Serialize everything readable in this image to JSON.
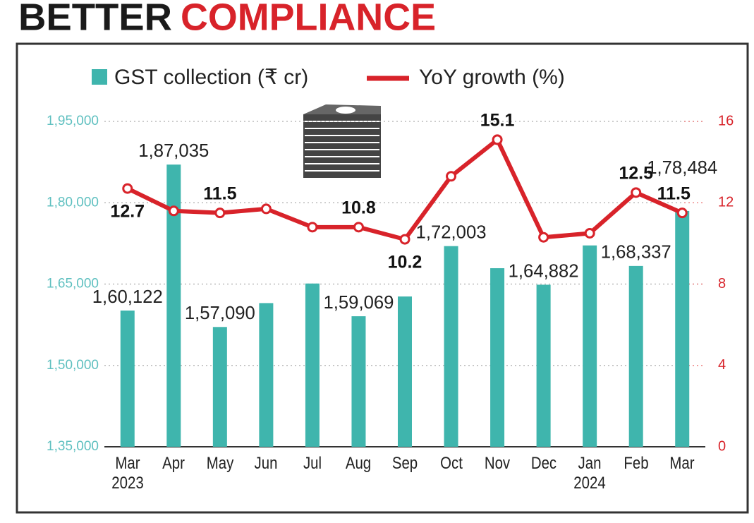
{
  "chart_data": {
    "type": "bar-line",
    "title_words": [
      "BETTER",
      "COMPLIANCE"
    ],
    "categories": [
      "Mar\n2023",
      "Apr",
      "May",
      "Jun",
      "Jul",
      "Aug",
      "Sep",
      "Oct",
      "Nov",
      "Dec",
      "Jan\n2024",
      "Feb",
      "Mar"
    ],
    "series": [
      {
        "name": "GST collection (₹ cr)",
        "color": "#3fb5ad",
        "axis": "y",
        "values": [
          160122,
          187035,
          157090,
          161497,
          165105,
          159069,
          162712,
          172003,
          167929,
          164882,
          172129,
          168337,
          178484
        ],
        "value_labels": [
          "1,60,122",
          "1,87,035",
          "1,57,090",
          null,
          null,
          "1,59,069",
          null,
          "1,72,003",
          null,
          "1,64,882",
          null,
          "1,68,337",
          "1,78,484"
        ]
      },
      {
        "name": "YoY growth (%)",
        "color": "#d8232a",
        "axis": "y2",
        "values": [
          12.7,
          11.6,
          11.5,
          11.7,
          10.8,
          10.8,
          10.2,
          13.3,
          15.1,
          10.3,
          10.5,
          12.5,
          11.5
        ],
        "value_labels": [
          "12.7",
          null,
          "11.5",
          null,
          null,
          "10.8",
          "10.2",
          null,
          "15.1",
          null,
          null,
          "12.5",
          "11.5"
        ]
      }
    ],
    "ylim": [
      135000,
      195000
    ],
    "yticks": [
      {
        "value": 135000,
        "label": "1,35,000"
      },
      {
        "value": 150000,
        "label": "1,50,000"
      },
      {
        "value": 165000,
        "label": "1,65,000"
      },
      {
        "value": 180000,
        "label": "1,80,000"
      },
      {
        "value": 195000,
        "label": "1,95,000"
      }
    ],
    "y2lim": [
      0,
      16
    ],
    "y2ticks": [
      0,
      4,
      8,
      12,
      16
    ],
    "grid": true
  }
}
